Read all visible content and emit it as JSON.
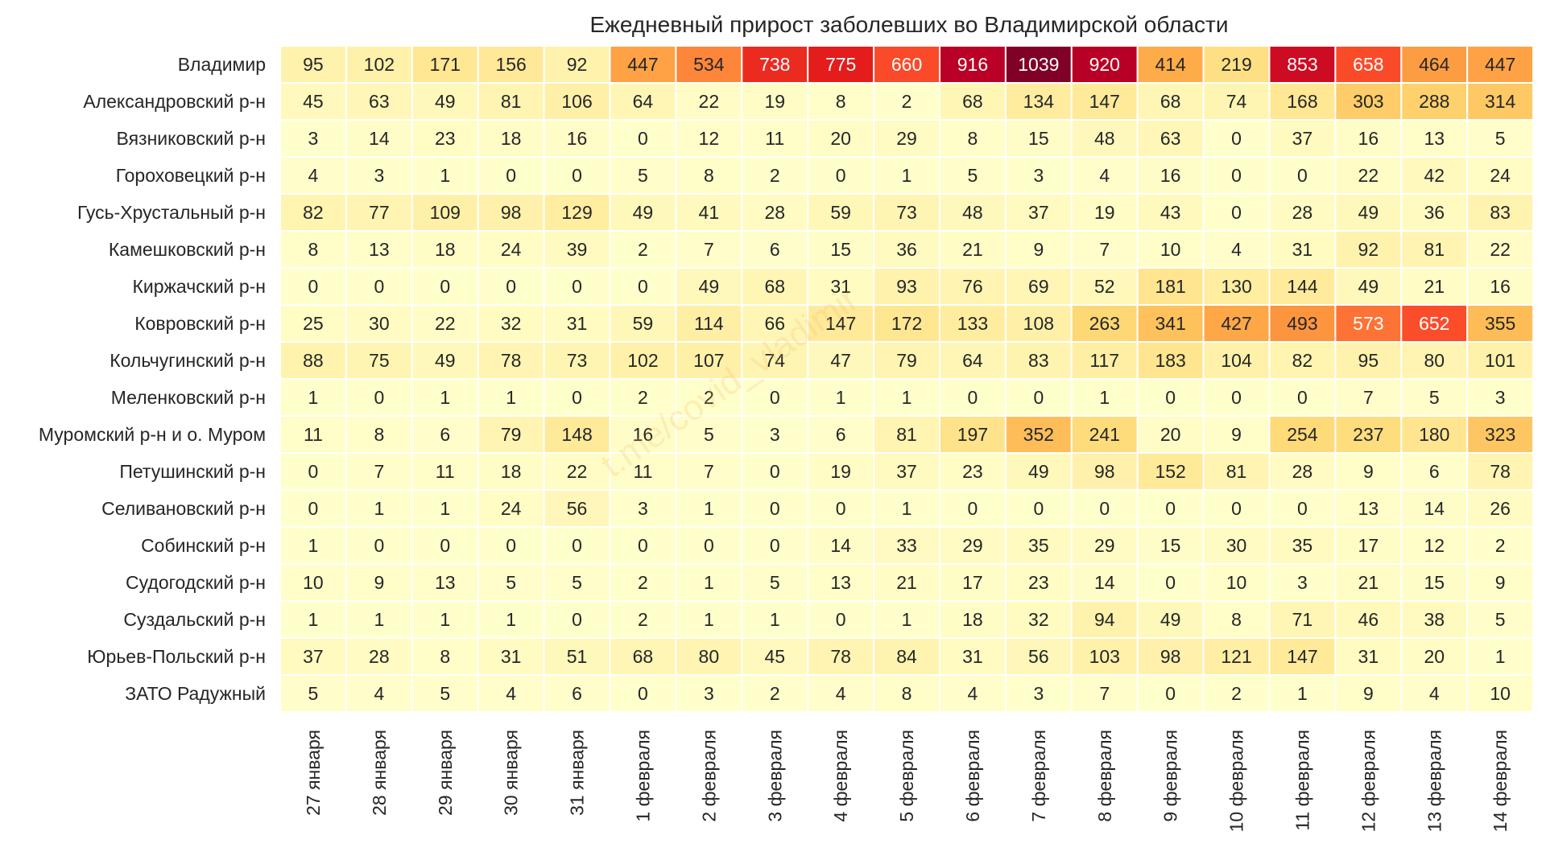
{
  "chart_data": {
    "type": "heatmap",
    "title": "Ежедневный прирост заболевших во Владимирской области",
    "watermark": "t.me/covid_vladimir",
    "x_labels": [
      "27 января",
      "28 января",
      "29 января",
      "30 января",
      "31 января",
      "1 февраля",
      "2 февраля",
      "3 февраля",
      "4 февраля",
      "5 февраля",
      "6 февраля",
      "7 февраля",
      "8 февраля",
      "9 февраля",
      "10 февраля",
      "11 февраля",
      "12 февраля",
      "13 февраля",
      "14 февраля"
    ],
    "y_labels": [
      "Владимир",
      "Александровский р-н",
      "Вязниковский р-н",
      "Гороховецкий р-н",
      "Гусь-Хрустальный р-н",
      "Камешковский р-н",
      "Киржачский р-н",
      "Ковровский р-н",
      "Кольчугинский р-н",
      "Меленковский р-н",
      "Муромский р-н и о. Муром",
      "Петушинский р-н",
      "Селивановский р-н",
      "Собинский р-н",
      "Судогодский р-н",
      "Суздальский р-н",
      "Юрьев-Польский р-н",
      "ЗАТО Радужный"
    ],
    "values": [
      [
        95,
        102,
        171,
        156,
        92,
        447,
        534,
        738,
        775,
        660,
        916,
        1039,
        920,
        414,
        219,
        853,
        658,
        464,
        447
      ],
      [
        45,
        63,
        49,
        81,
        106,
        64,
        22,
        19,
        8,
        2,
        68,
        134,
        147,
        68,
        74,
        168,
        303,
        288,
        314
      ],
      [
        3,
        14,
        23,
        18,
        16,
        0,
        12,
        11,
        20,
        29,
        8,
        15,
        48,
        63,
        0,
        37,
        16,
        13,
        5
      ],
      [
        4,
        3,
        1,
        0,
        0,
        5,
        8,
        2,
        0,
        1,
        5,
        3,
        4,
        16,
        0,
        0,
        22,
        42,
        24
      ],
      [
        82,
        77,
        109,
        98,
        129,
        49,
        41,
        28,
        59,
        73,
        48,
        37,
        19,
        43,
        0,
        28,
        49,
        36,
        83
      ],
      [
        8,
        13,
        18,
        24,
        39,
        2,
        7,
        6,
        15,
        36,
        21,
        9,
        7,
        10,
        4,
        31,
        92,
        81,
        22
      ],
      [
        0,
        0,
        0,
        0,
        0,
        0,
        49,
        68,
        31,
        93,
        76,
        69,
        52,
        181,
        130,
        144,
        49,
        21,
        16
      ],
      [
        25,
        30,
        22,
        32,
        31,
        59,
        114,
        66,
        147,
        172,
        133,
        108,
        263,
        341,
        427,
        493,
        573,
        652,
        355
      ],
      [
        88,
        75,
        49,
        78,
        73,
        102,
        107,
        74,
        47,
        79,
        64,
        83,
        117,
        183,
        104,
        82,
        95,
        80,
        101
      ],
      [
        1,
        0,
        1,
        1,
        0,
        2,
        2,
        0,
        1,
        1,
        0,
        0,
        1,
        0,
        0,
        0,
        7,
        5,
        3
      ],
      [
        11,
        8,
        6,
        79,
        148,
        16,
        5,
        3,
        6,
        81,
        197,
        352,
        241,
        20,
        9,
        254,
        237,
        180,
        323
      ],
      [
        0,
        7,
        11,
        18,
        22,
        11,
        7,
        0,
        19,
        37,
        23,
        49,
        98,
        152,
        81,
        28,
        9,
        6,
        78
      ],
      [
        0,
        1,
        1,
        24,
        56,
        3,
        1,
        0,
        0,
        1,
        0,
        0,
        0,
        0,
        0,
        0,
        13,
        14,
        26
      ],
      [
        1,
        0,
        0,
        0,
        0,
        0,
        0,
        0,
        14,
        33,
        29,
        35,
        29,
        15,
        30,
        35,
        17,
        12,
        2
      ],
      [
        10,
        9,
        13,
        5,
        5,
        2,
        1,
        5,
        13,
        21,
        17,
        23,
        14,
        0,
        10,
        3,
        21,
        15,
        9
      ],
      [
        1,
        1,
        1,
        1,
        0,
        2,
        1,
        1,
        0,
        1,
        18,
        32,
        94,
        49,
        8,
        71,
        46,
        38,
        5
      ],
      [
        37,
        28,
        8,
        31,
        51,
        68,
        80,
        45,
        78,
        84,
        31,
        56,
        103,
        98,
        121,
        147,
        31,
        20,
        1
      ],
      [
        5,
        4,
        5,
        4,
        6,
        0,
        3,
        2,
        4,
        8,
        4,
        3,
        7,
        0,
        2,
        1,
        9,
        4,
        10
      ]
    ],
    "colormap": "YlOrRd-like",
    "vmin": 0,
    "vmax": 1039
  }
}
